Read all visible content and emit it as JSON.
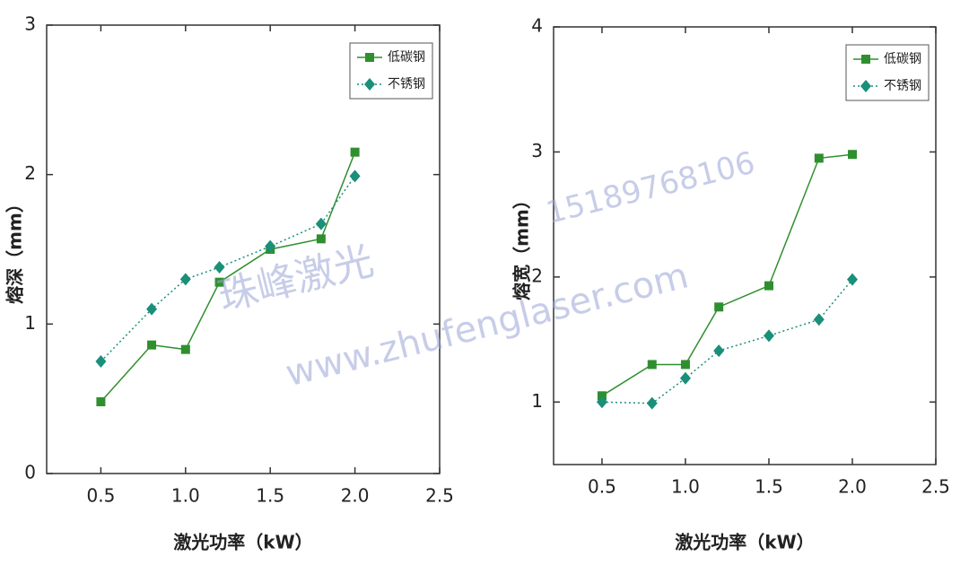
{
  "chart_data": [
    {
      "type": "line",
      "xlabel": "激光功率（kW）",
      "ylabel": "熔深（mm）",
      "x": [
        0.5,
        0.8,
        1.0,
        1.2,
        1.5,
        1.8,
        2.0
      ],
      "series": [
        {
          "name": "低碳钢",
          "color": "#2f8f2f",
          "marker": "square",
          "dash": "solid",
          "values": [
            0.48,
            0.86,
            0.83,
            1.28,
            1.5,
            1.57,
            2.15
          ]
        },
        {
          "name": "不锈钢",
          "color": "#1a8f7a",
          "marker": "diamond",
          "dash": "dotted",
          "values": [
            0.75,
            1.1,
            1.3,
            1.38,
            1.52,
            1.67,
            1.99
          ]
        }
      ],
      "xlim": [
        0.18,
        2.5
      ],
      "xticks": [
        0.5,
        {
          "value": 1,
          "label": "1.0"
        },
        1.5,
        {
          "value": 2,
          "label": "2.0"
        },
        2.5
      ],
      "ylim": [
        0,
        3
      ],
      "yticks": [
        0,
        1,
        2,
        3
      ],
      "legend": "upper right"
    },
    {
      "type": "line",
      "xlabel": "激光功率（kW）",
      "ylabel": "熔宽（mm）",
      "x": [
        0.5,
        0.8,
        1.0,
        1.2,
        1.5,
        1.8,
        2.0
      ],
      "series": [
        {
          "name": "低碳钢",
          "color": "#2f8f2f",
          "marker": "square",
          "dash": "solid",
          "values": [
            1.05,
            1.3,
            1.3,
            1.76,
            1.93,
            2.95,
            2.98
          ]
        },
        {
          "name": "不锈钢",
          "color": "#1a8f7a",
          "marker": "diamond",
          "dash": "dotted",
          "values": [
            1.0,
            0.99,
            1.19,
            1.41,
            1.53,
            1.66,
            1.98
          ]
        }
      ],
      "xlim": [
        0.21,
        2.5
      ],
      "xticks": [
        0.5,
        {
          "value": 1,
          "label": "1.0"
        },
        1.5,
        {
          "value": 2,
          "label": "2.0"
        },
        2.5
      ],
      "ylim": [
        0.5,
        4
      ],
      "yticks": [
        1,
        2,
        3,
        4
      ],
      "legend": "upper right"
    }
  ],
  "watermark": [
    "珠峰激光",
    "15189768106",
    "www.zhufenglaser.com"
  ]
}
